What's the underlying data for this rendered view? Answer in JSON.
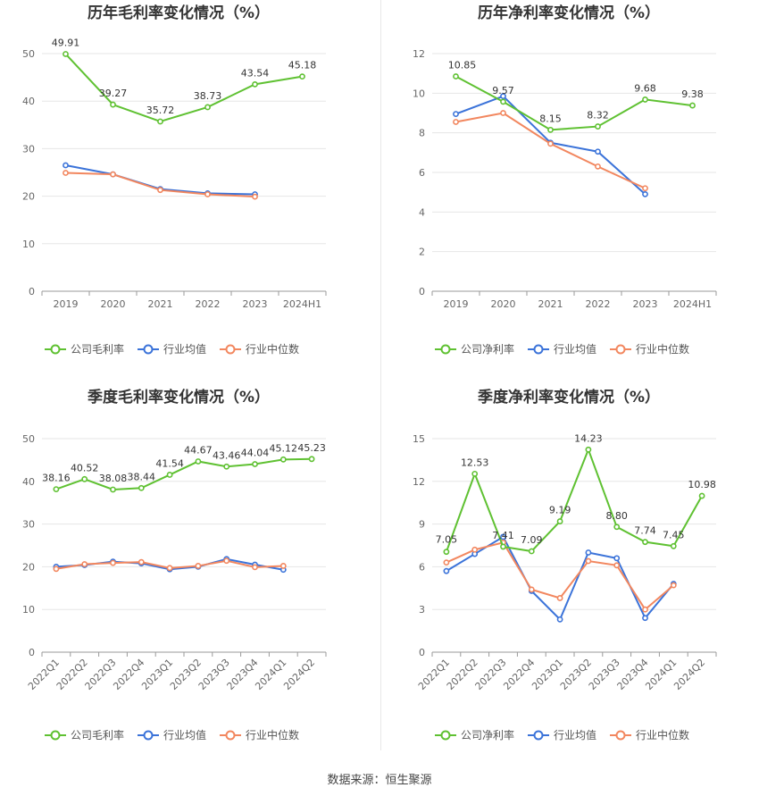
{
  "footer": "数据来源：恒生聚源",
  "colors": {
    "company": "#5fc132",
    "industry_avg": "#3b73d9",
    "industry_median": "#f2875f"
  },
  "chart_data": [
    {
      "type": "line",
      "title": "历年毛利率变化情况（%）",
      "categories": [
        "2019",
        "2020",
        "2021",
        "2022",
        "2023",
        "2024H1"
      ],
      "ylim": [
        0,
        50
      ],
      "yticks": [
        0,
        10,
        20,
        30,
        40,
        50
      ],
      "grid": true,
      "legend_position": "bottom",
      "series": [
        {
          "name": "公司毛利率",
          "role": "company",
          "values": [
            49.91,
            39.27,
            35.72,
            38.73,
            43.54,
            45.18
          ],
          "labels": [
            "49.91",
            "39.27",
            "35.72",
            "38.73",
            "43.54",
            "45.18"
          ]
        },
        {
          "name": "行业均值",
          "role": "industry_avg",
          "values": [
            26.5,
            24.6,
            21.5,
            20.6,
            20.4,
            null
          ]
        },
        {
          "name": "行业中位数",
          "role": "industry_median",
          "values": [
            24.9,
            24.6,
            21.3,
            20.4,
            19.9,
            null
          ]
        }
      ]
    },
    {
      "type": "line",
      "title": "历年净利率变化情况（%）",
      "categories": [
        "2019",
        "2020",
        "2021",
        "2022",
        "2023",
        "2024H1"
      ],
      "ylim": [
        0,
        12
      ],
      "yticks": [
        0,
        2,
        4,
        6,
        8,
        10,
        12
      ],
      "grid": true,
      "legend_position": "bottom",
      "series": [
        {
          "name": "公司净利率",
          "role": "company",
          "values": [
            10.85,
            9.57,
            8.15,
            8.32,
            9.68,
            9.38
          ],
          "labels": [
            "10.85",
            "9.57",
            "8.15",
            "8.32",
            "9.68",
            "9.38"
          ]
        },
        {
          "name": "行业均值",
          "role": "industry_avg",
          "values": [
            8.95,
            9.85,
            7.5,
            7.05,
            4.9,
            null
          ]
        },
        {
          "name": "行业中位数",
          "role": "industry_median",
          "values": [
            8.55,
            9.0,
            7.45,
            6.3,
            5.2,
            null
          ]
        }
      ]
    },
    {
      "type": "line",
      "title": "季度毛利率变化情况（%）",
      "categories": [
        "2022Q1",
        "2022Q2",
        "2022Q3",
        "2022Q4",
        "2023Q1",
        "2023Q2",
        "2023Q3",
        "2023Q4",
        "2024Q1",
        "2024Q2"
      ],
      "ylim": [
        0,
        50
      ],
      "yticks": [
        0,
        10,
        20,
        30,
        40,
        50
      ],
      "grid": true,
      "legend_position": "bottom",
      "series": [
        {
          "name": "公司毛利率",
          "role": "company",
          "values": [
            38.16,
            40.52,
            38.08,
            38.44,
            41.54,
            44.67,
            43.46,
            44.04,
            45.12,
            45.23
          ],
          "labels": [
            "38.16",
            "40.52",
            "38.08",
            "38.44",
            "41.54",
            "44.67",
            "43.46",
            "44.04",
            "45.12",
            "45.23"
          ]
        },
        {
          "name": "行业均值",
          "role": "industry_avg",
          "values": [
            20.0,
            20.4,
            21.2,
            20.8,
            19.4,
            20.0,
            21.8,
            20.5,
            19.3,
            null
          ]
        },
        {
          "name": "行业中位数",
          "role": "industry_median",
          "values": [
            19.5,
            20.6,
            20.9,
            21.1,
            19.7,
            20.2,
            21.4,
            19.9,
            20.2,
            null
          ]
        }
      ]
    },
    {
      "type": "line",
      "title": "季度净利率变化情况（%）",
      "categories": [
        "2022Q1",
        "2022Q2",
        "2022Q3",
        "2022Q4",
        "2023Q1",
        "2023Q2",
        "2023Q3",
        "2023Q4",
        "2024Q1",
        "2024Q2"
      ],
      "ylim": [
        0,
        15
      ],
      "yticks": [
        0,
        3,
        6,
        9,
        12,
        15
      ],
      "grid": true,
      "legend_position": "bottom",
      "series": [
        {
          "name": "公司净利率",
          "role": "company",
          "values": [
            7.05,
            12.53,
            7.41,
            7.09,
            9.19,
            14.23,
            8.8,
            7.74,
            7.45,
            10.98
          ],
          "labels": [
            "7.05",
            "12.53",
            "7.41",
            "7.09",
            "9.19",
            "14.23",
            "8.80",
            "7.74",
            "7.45",
            "10.98"
          ]
        },
        {
          "name": "行业均值",
          "role": "industry_avg",
          "values": [
            5.7,
            6.9,
            8.1,
            4.3,
            2.3,
            7.0,
            6.6,
            2.4,
            4.8,
            null
          ]
        },
        {
          "name": "行业中位数",
          "role": "industry_median",
          "values": [
            6.3,
            7.2,
            7.7,
            4.4,
            3.8,
            6.4,
            6.1,
            3.0,
            4.7,
            null
          ]
        }
      ]
    }
  ]
}
